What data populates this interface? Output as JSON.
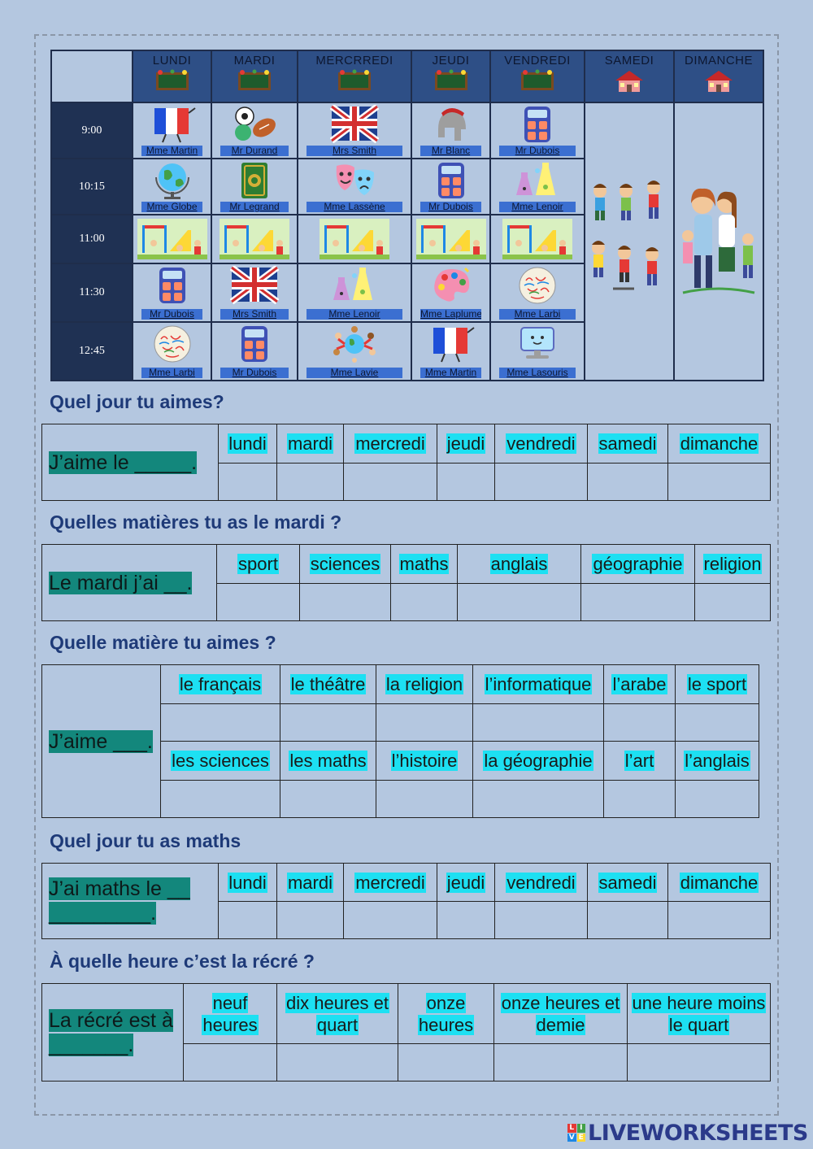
{
  "timetable": {
    "days": [
      "LUNDI",
      "MARDI",
      "MERCRREDI",
      "JEUDI",
      "VENDREDI",
      "SAMEDI",
      "DIMANCHE"
    ],
    "rows": [
      {
        "time": "9:00",
        "cells": [
          {
            "icon": "french-flag-icon",
            "teacher": "Mme Martin"
          },
          {
            "icon": "sports-balls-icon",
            "teacher": "Mr Durand"
          },
          {
            "icon": "uk-flag-icon",
            "teacher": "Mrs Smith"
          },
          {
            "icon": "roman-helmet-icon",
            "teacher": "Mr Blanc"
          },
          {
            "icon": "calculator-icon",
            "teacher": "Mr Dubois"
          }
        ]
      },
      {
        "time": "10:15",
        "cells": [
          {
            "icon": "globe-icon",
            "teacher": "Mme Globe"
          },
          {
            "icon": "quran-book-icon",
            "teacher": "Mr Legrand"
          },
          {
            "icon": "theatre-masks-icon",
            "teacher": "Mme Lassène"
          },
          {
            "icon": "calculator-icon",
            "teacher": "Mr Dubois"
          },
          {
            "icon": "science-flasks-icon",
            "teacher": "Mme Lenoir"
          }
        ]
      },
      {
        "time": "11:00",
        "recess": true
      },
      {
        "time": "11:30",
        "cells": [
          {
            "icon": "calculator-icon",
            "teacher": "Mr Dubois"
          },
          {
            "icon": "uk-flag-icon",
            "teacher": "Mrs Smith"
          },
          {
            "icon": "science-flasks-icon",
            "teacher": "Mme Lenoir"
          },
          {
            "icon": "art-palette-icon",
            "teacher": "Mme Laplume"
          },
          {
            "icon": "arabic-letters-icon",
            "teacher": "Mme Larbi"
          }
        ]
      },
      {
        "time": "12:45",
        "cells": [
          {
            "icon": "arabic-letters-icon",
            "teacher": "Mme Larbi"
          },
          {
            "icon": "calculator-icon",
            "teacher": "Mr Dubois"
          },
          {
            "icon": "world-children-icon",
            "teacher": "Mme Lavie"
          },
          {
            "icon": "french-flag-icon",
            "teacher": "Mme Martin"
          },
          {
            "icon": "computer-icon",
            "teacher": "Mme Lasouris"
          }
        ]
      }
    ]
  },
  "q1": {
    "title": "Quel jour tu aimes?",
    "lead": "J’aime le _____.",
    "options": [
      "lundi",
      "mardi",
      "mercredi",
      "jeudi",
      "vendredi",
      "samedi",
      "dimanche"
    ]
  },
  "q2": {
    "title": "Quelles matières tu as le mardi ?",
    "lead": "Le mardi j’ai __.",
    "options": [
      "sport",
      "sciences",
      "maths",
      "anglais",
      "géographie",
      "religion"
    ]
  },
  "q3": {
    "title": "Quelle matière tu aimes ?",
    "lead": "J’aime ___.",
    "options_row1": [
      "le français",
      "le théâtre",
      "la religion",
      "l’informatique",
      "l’arabe",
      "le sport"
    ],
    "options_row2": [
      "les sciences",
      "les maths",
      "l’histoire",
      "la géographie",
      "l’art",
      "l’anglais"
    ]
  },
  "q4": {
    "title": "Quel jour tu as maths",
    "lead": "J’ai maths le __ _________.",
    "options": [
      "lundi",
      "mardi",
      "mercredi",
      "jeudi",
      "vendredi",
      "samedi",
      "dimanche"
    ]
  },
  "q5": {
    "title": "À quelle heure c’est la récré ?",
    "lead": "La récré est à _______.",
    "options": [
      "neuf heures",
      "dix heures et quart",
      "onze heures",
      "onze heures et demie",
      "une heure moins le quart"
    ]
  },
  "logo": {
    "text": "LIVEWORKSHEETS",
    "letters": [
      "L",
      "I",
      "V",
      "E"
    ],
    "colors": [
      "#e53935",
      "#43a047",
      "#1e88e5",
      "#fdd835"
    ]
  }
}
